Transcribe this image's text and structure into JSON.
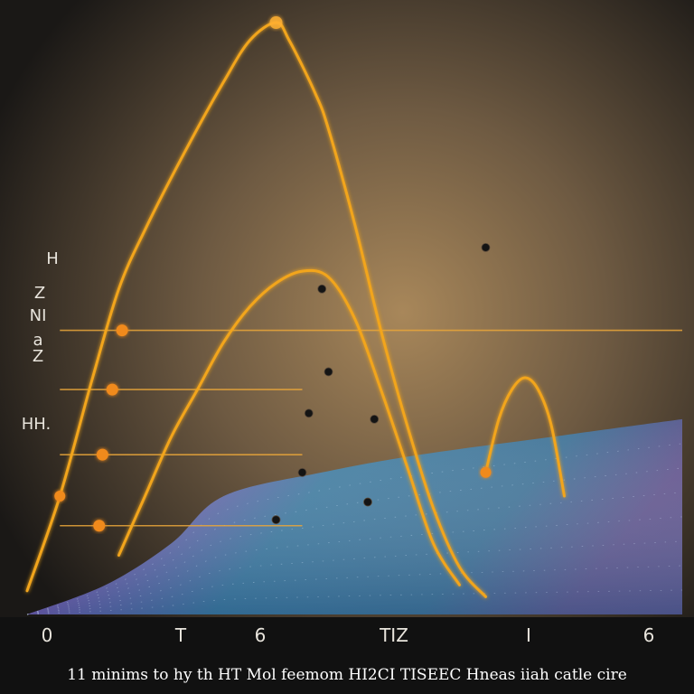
{
  "chart_data": {
    "type": "line",
    "title": "",
    "caption": "11 minims to hy th HT Mol feemom HI2CI TISEEC Hneas iiah catle cire",
    "y_tick_labels": [
      "H",
      "Z",
      "NI",
      "a",
      "Z",
      "HH."
    ],
    "x_tick_labels": [
      "0",
      "T",
      "6",
      "TIZ",
      "I",
      "6"
    ],
    "xlabel": "",
    "ylabel": "",
    "series": [
      {
        "type": "line",
        "x": [
          0.0,
          0.05,
          0.1,
          0.14,
          0.18,
          0.24,
          0.3,
          0.34,
          0.38,
          0.4,
          0.44,
          0.46,
          0.5,
          0.54,
          0.58,
          0.62,
          0.66,
          0.7
        ],
        "y": [
          0.04,
          0.2,
          0.4,
          0.55,
          0.65,
          0.78,
          0.9,
          0.97,
          1.0,
          0.97,
          0.88,
          0.82,
          0.66,
          0.48,
          0.32,
          0.18,
          0.08,
          0.03
        ]
      },
      {
        "type": "line",
        "x": [
          0.14,
          0.18,
          0.22,
          0.26,
          0.3,
          0.34,
          0.38,
          0.42,
          0.46,
          0.5,
          0.54,
          0.58,
          0.62,
          0.66
        ],
        "y": [
          0.1,
          0.2,
          0.3,
          0.38,
          0.46,
          0.52,
          0.56,
          0.58,
          0.57,
          0.5,
          0.38,
          0.25,
          0.12,
          0.05
        ]
      },
      {
        "type": "line",
        "x": [
          0.7,
          0.72,
          0.74,
          0.76,
          0.78,
          0.8,
          0.82
        ],
        "y": [
          0.24,
          0.33,
          0.38,
          0.4,
          0.38,
          0.32,
          0.2
        ]
      }
    ],
    "reference_lines": [
      {
        "y": 0.48
      },
      {
        "y": 0.38
      },
      {
        "y": 0.27
      },
      {
        "y": 0.15
      }
    ],
    "scatter_points": [
      {
        "x": 0.7,
        "y": 0.62
      },
      {
        "x": 0.45,
        "y": 0.55
      },
      {
        "x": 0.46,
        "y": 0.41
      },
      {
        "x": 0.43,
        "y": 0.34
      },
      {
        "x": 0.53,
        "y": 0.33
      },
      {
        "x": 0.42,
        "y": 0.24
      },
      {
        "x": 0.52,
        "y": 0.19
      },
      {
        "x": 0.38,
        "y": 0.16
      }
    ],
    "xlim": [
      0,
      1
    ],
    "ylim": [
      0,
      1
    ],
    "grid": false,
    "legend": "none",
    "colors": {
      "background_dark": "#1a1816",
      "background_glow": "#a8875a",
      "curve": "#f2a51c",
      "curve_glow": "#ffb030",
      "marker": "#f08a1a",
      "reference_line": "#e9a63a",
      "surface_blue": "#3d88b8",
      "surface_purple": "#9a5fd0",
      "surface_yellow": "#e8e070",
      "axis": "#111111",
      "text": "#e8e4dc",
      "dot": "#141414"
    }
  }
}
